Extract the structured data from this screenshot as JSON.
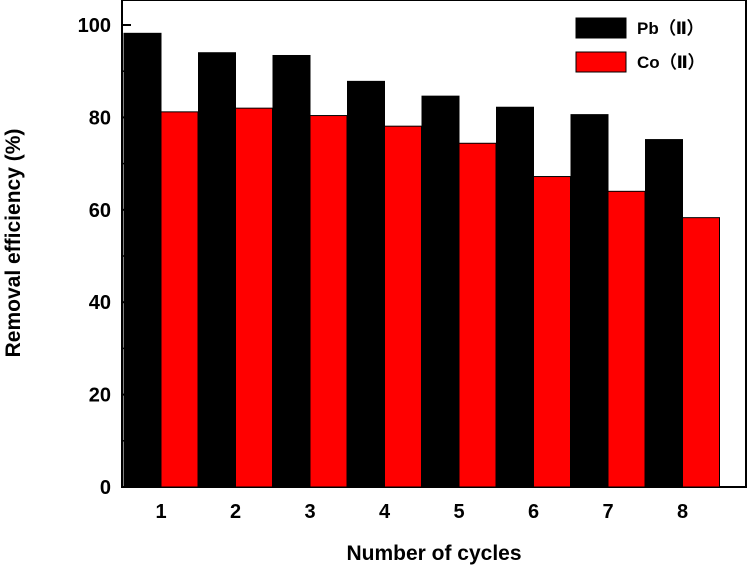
{
  "chart_data": {
    "type": "bar",
    "title": "",
    "xlabel": "Number of cycles",
    "ylabel": "Removal efficiency (%)",
    "categories": [
      "1",
      "2",
      "3",
      "4",
      "5",
      "6",
      "7",
      "8"
    ],
    "series": [
      {
        "name": "Pb（Ⅱ）",
        "color": "#000000",
        "values": [
          98.2,
          94.0,
          93.4,
          87.8,
          84.6,
          82.2,
          80.6,
          75.2
        ]
      },
      {
        "name": "Co（Ⅱ）",
        "color": "#ff0000",
        "values": [
          81.2,
          82.0,
          80.4,
          78.1,
          74.4,
          67.2,
          64.0,
          58.3
        ]
      }
    ],
    "ylim": [
      0,
      100
    ],
    "yticks": [
      "0",
      "20",
      "40",
      "60",
      "80",
      "100"
    ],
    "grid": false,
    "legend_position": "top-right"
  }
}
